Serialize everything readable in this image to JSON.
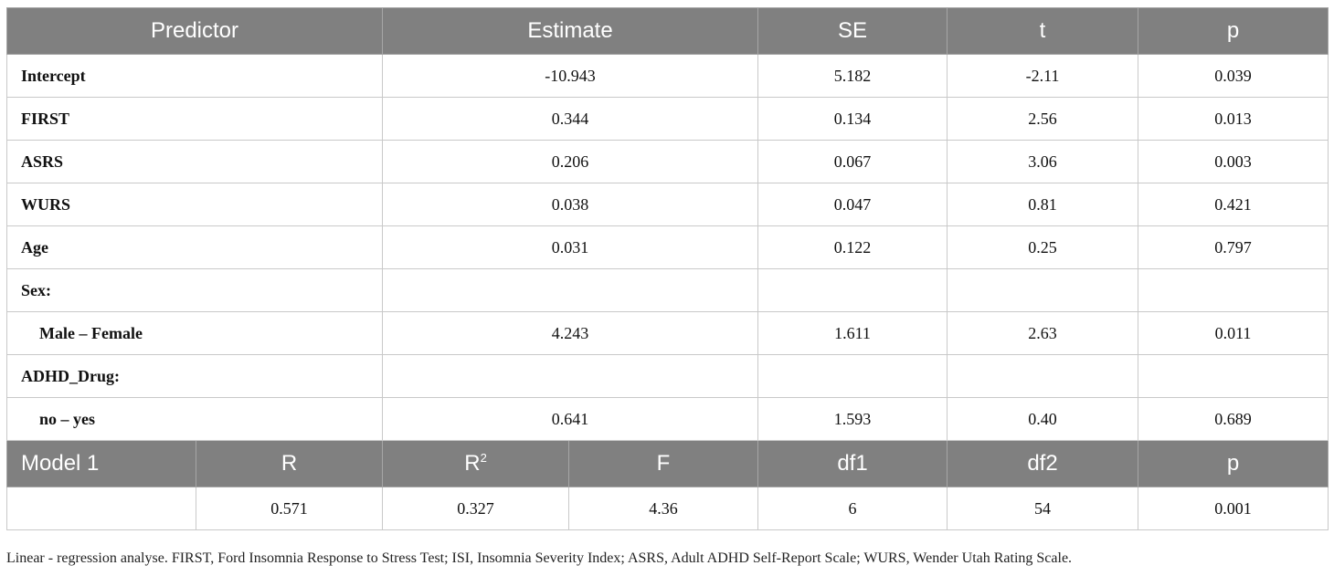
{
  "header": {
    "predictor": "Predictor",
    "estimate": "Estimate",
    "se": "SE",
    "t": "t",
    "p": "p"
  },
  "rows": [
    {
      "label": "Intercept",
      "estimate": "-10.943",
      "se": "5.182",
      "t": "-2.11",
      "p": "0.039"
    },
    {
      "label": "FIRST",
      "estimate": "0.344",
      "se": "0.134",
      "t": "2.56",
      "p": "0.013"
    },
    {
      "label": "ASRS",
      "estimate": "0.206",
      "se": "0.067",
      "t": "3.06",
      "p": "0.003"
    },
    {
      "label": "WURS",
      "estimate": "0.038",
      "se": "0.047",
      "t": "0.81",
      "p": "0.421"
    },
    {
      "label": "Age",
      "estimate": "0.031",
      "se": "0.122",
      "t": "0.25",
      "p": "0.797"
    },
    {
      "label": "Sex:",
      "estimate": "",
      "se": "",
      "t": "",
      "p": ""
    },
    {
      "label": "Male – Female",
      "estimate": "4.243",
      "se": "1.611",
      "t": "2.63",
      "p": "0.011"
    },
    {
      "label": "ADHD_Drug:",
      "estimate": "",
      "se": "",
      "t": "",
      "p": ""
    },
    {
      "label": "no – yes",
      "estimate": "0.641",
      "se": "1.593",
      "t": "0.40",
      "p": "0.689"
    }
  ],
  "model_header": {
    "model": "Model 1",
    "r": "R",
    "r2_base": "R",
    "r2_sup": "2",
    "f": "F",
    "df1": "df1",
    "df2": "df2",
    "p": "p"
  },
  "model_row": {
    "model": "",
    "r": "0.571",
    "r2": "0.327",
    "f": "4.36",
    "df1": "6",
    "df2": "54",
    "p": "0.001"
  },
  "caption": "Linear - regression analyse. FIRST, Ford Insomnia Response to Stress Test; ISI, Insomnia Severity Index; ASRS, Adult ADHD Self-Report Scale; WURS, Wender Utah Rating Scale.",
  "colors": {
    "header_bg": "#808080",
    "header_text": "#ffffff",
    "border": "#c9c9c9"
  }
}
